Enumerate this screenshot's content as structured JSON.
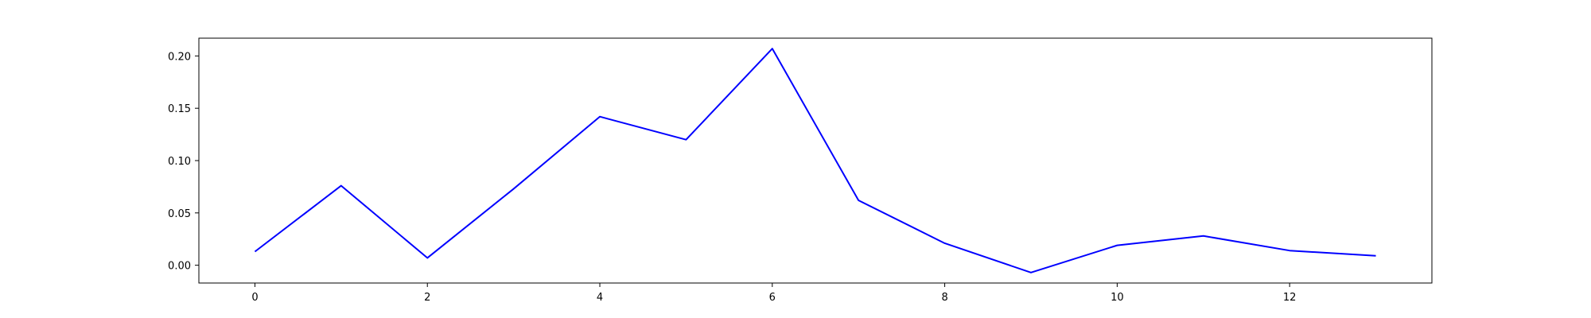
{
  "chart_data": {
    "type": "line",
    "x": [
      0,
      1,
      2,
      3,
      4,
      5,
      6,
      7,
      8,
      9,
      10,
      11,
      12,
      13
    ],
    "series": [
      {
        "values": [
          0.013,
          0.076,
          0.007,
          0.073,
          0.142,
          0.12,
          0.207,
          0.062,
          0.021,
          -0.007,
          0.019,
          0.028,
          0.014,
          0.009
        ],
        "color": "#0000ff"
      }
    ],
    "xlim": [
      -0.65,
      13.65
    ],
    "ylim": [
      -0.017,
      0.217
    ],
    "x_ticks": [
      0,
      2,
      4,
      6,
      8,
      10,
      12
    ],
    "x_tick_labels": [
      "0",
      "2",
      "4",
      "6",
      "8",
      "10",
      "12"
    ],
    "y_ticks": [
      0.0,
      0.05,
      0.1,
      0.15,
      0.2
    ],
    "y_tick_labels": [
      "0.00",
      "0.05",
      "0.10",
      "0.15",
      "0.20"
    ],
    "grid": false,
    "title": "",
    "xlabel": "",
    "ylabel": ""
  }
}
